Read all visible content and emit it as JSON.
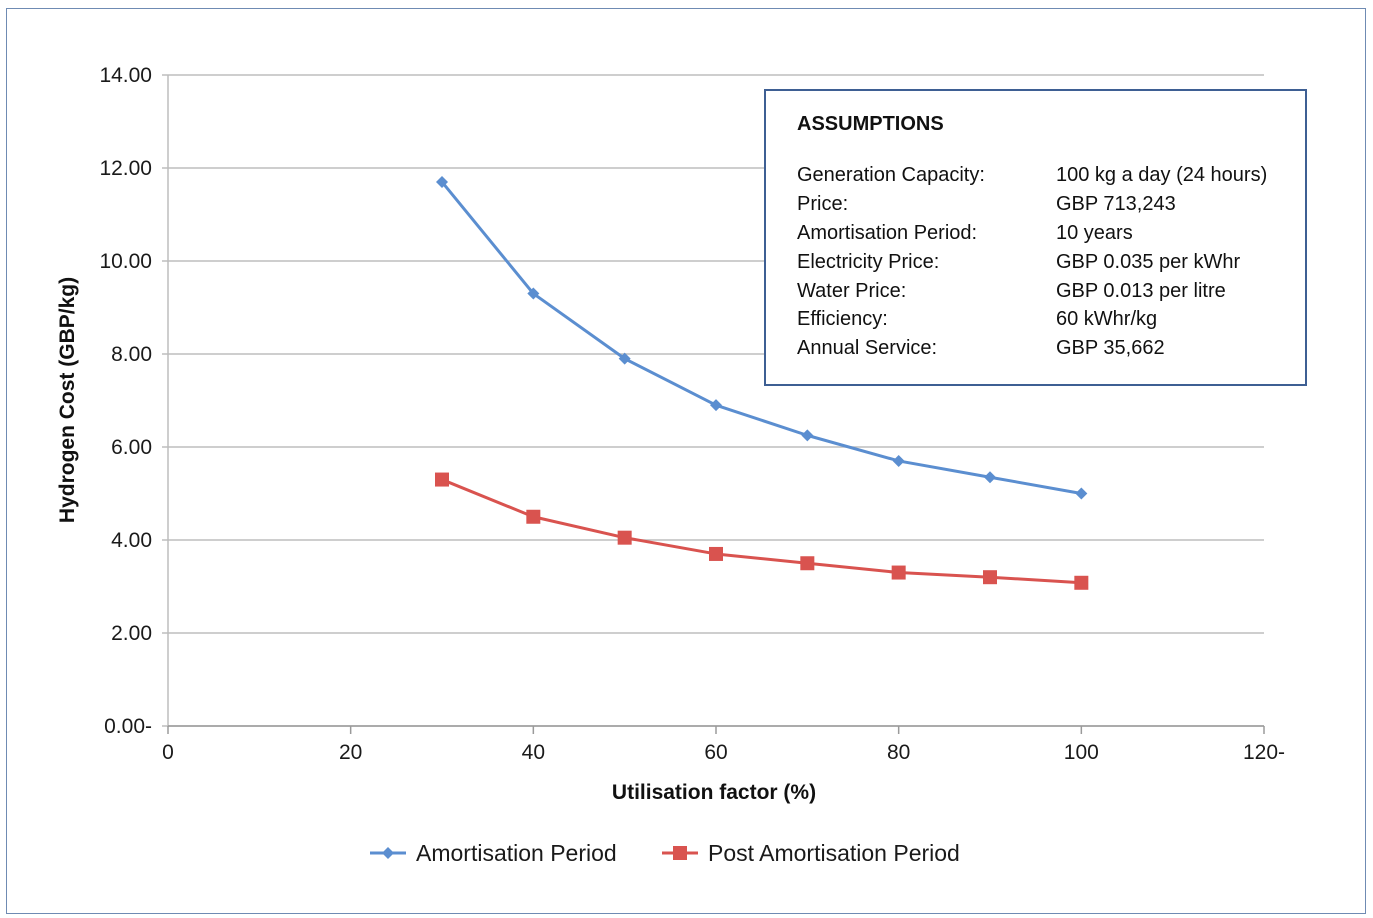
{
  "chart_data": {
    "type": "line",
    "title": "",
    "xlabel": "Utilisation factor (%)",
    "ylabel": "Hydrogen Cost (GBP/kg)",
    "xlim": [
      0,
      120
    ],
    "ylim": [
      0,
      14
    ],
    "xticks": [
      "0",
      "20",
      "40",
      "60",
      "80",
      "100",
      "120-"
    ],
    "yticks": [
      "0.00-",
      "2.00",
      "4.00",
      "6.00",
      "8.00",
      "10.00",
      "12.00",
      "14.00"
    ],
    "grid": "horizontal",
    "legend_position": "bottom",
    "x": [
      30,
      40,
      50,
      60,
      70,
      80,
      90,
      100
    ],
    "series": [
      {
        "name": "Amortisation Period",
        "color": "#5b8ed0",
        "marker": "diamond",
        "values": [
          11.7,
          9.3,
          7.9,
          6.9,
          6.25,
          5.7,
          5.35,
          5.0
        ]
      },
      {
        "name": "Post Amortisation Period",
        "color": "#d9534f",
        "marker": "square",
        "values": [
          5.3,
          4.5,
          4.05,
          3.7,
          3.5,
          3.3,
          3.2,
          3.08
        ]
      }
    ]
  },
  "assumptions": {
    "title": "ASSUMPTIONS",
    "rows": [
      {
        "label": "Generation Capacity:",
        "value": "100 kg a day (24 hours)"
      },
      {
        "label": "Price:",
        "value": "GBP 713,243"
      },
      {
        "label": "Amortisation Period:",
        "value": "10 years"
      },
      {
        "label": "Electricity Price:",
        "value": "GBP 0.035 per kWhr"
      },
      {
        "label": "Water Price:",
        "value": "GBP 0.013 per litre"
      },
      {
        "label": "Efficiency:",
        "value": "60 kWhr/kg"
      },
      {
        "label": "Annual Service:",
        "value": "GBP 35,662"
      }
    ]
  }
}
